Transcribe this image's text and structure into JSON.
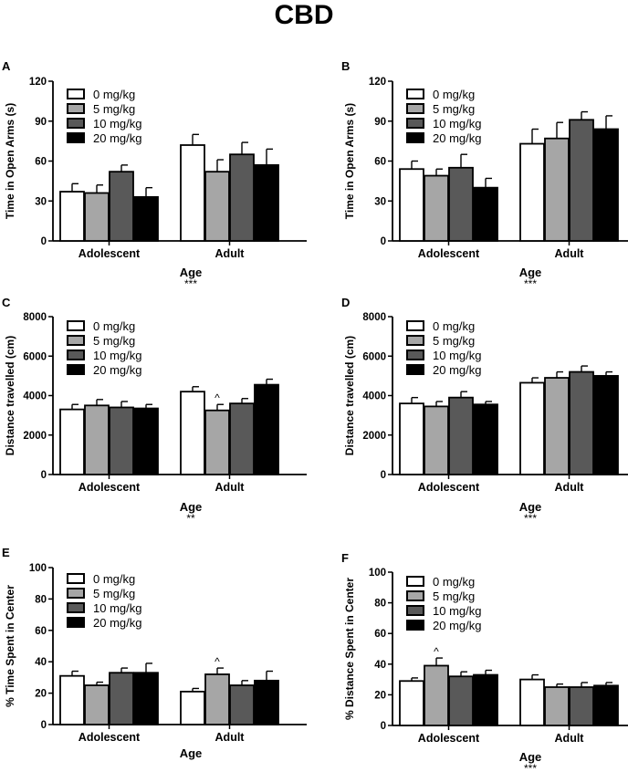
{
  "figure_title": "CBD",
  "colors": {
    "c0": "#ffffff",
    "c5": "#a6a6a6",
    "c10": "#595959",
    "c20": "#000000"
  },
  "chart_data": [
    {
      "type": "bar",
      "letter": "A",
      "ylabel": "Time in Open Arms (s)",
      "ylim": [
        0,
        120
      ],
      "yticks": [
        0,
        30,
        60,
        90,
        120
      ],
      "categories": [
        "Adolescent",
        "Adult"
      ],
      "series": [
        {
          "name": "0 mg/kg",
          "values": [
            37,
            72
          ],
          "errors": [
            6,
            8
          ]
        },
        {
          "name": "5 mg/kg",
          "values": [
            36,
            52
          ],
          "errors": [
            6,
            9
          ]
        },
        {
          "name": "10 mg/kg",
          "values": [
            52,
            65
          ],
          "errors": [
            5,
            9
          ]
        },
        {
          "name": "20 mg/kg",
          "values": [
            33,
            57
          ],
          "errors": [
            7,
            12
          ]
        }
      ],
      "xlabel": "Age",
      "significance": "***",
      "annotations": []
    },
    {
      "type": "bar",
      "letter": "B",
      "ylabel": "Time in Open Arms (s)",
      "ylim": [
        0,
        120
      ],
      "yticks": [
        0,
        30,
        60,
        90,
        120
      ],
      "categories": [
        "Adolescent",
        "Adult"
      ],
      "series": [
        {
          "name": "0 mg/kg",
          "values": [
            54,
            73
          ],
          "errors": [
            6,
            11
          ]
        },
        {
          "name": "5 mg/kg",
          "values": [
            49,
            77
          ],
          "errors": [
            5,
            12
          ]
        },
        {
          "name": "10 mg/kg",
          "values": [
            55,
            91
          ],
          "errors": [
            10,
            6
          ]
        },
        {
          "name": "20 mg/kg",
          "values": [
            40,
            84
          ],
          "errors": [
            7,
            10
          ]
        }
      ],
      "xlabel": "Age",
      "significance": "***",
      "annotations": []
    },
    {
      "type": "bar",
      "letter": "C",
      "ylabel": "Distance travelled (cm)",
      "ylim": [
        0,
        8000
      ],
      "yticks": [
        0,
        2000,
        4000,
        6000,
        8000
      ],
      "categories": [
        "Adolescent",
        "Adult"
      ],
      "series": [
        {
          "name": "0 mg/kg",
          "values": [
            3300,
            4200
          ],
          "errors": [
            250,
            250
          ]
        },
        {
          "name": "5 mg/kg",
          "values": [
            3500,
            3250
          ],
          "errors": [
            300,
            300
          ]
        },
        {
          "name": "10 mg/kg",
          "values": [
            3400,
            3600
          ],
          "errors": [
            300,
            250
          ]
        },
        {
          "name": "20 mg/kg",
          "values": [
            3350,
            4550
          ],
          "errors": [
            200,
            280
          ]
        }
      ],
      "xlabel": "Age",
      "significance": "**",
      "annotations": [
        {
          "text": "^",
          "category": 1,
          "series": 1
        }
      ]
    },
    {
      "type": "bar",
      "letter": "D",
      "ylabel": "Distance travelled (cm)",
      "ylim": [
        0,
        8000
      ],
      "yticks": [
        0,
        2000,
        4000,
        6000,
        8000
      ],
      "categories": [
        "Adolescent",
        "Adult"
      ],
      "series": [
        {
          "name": "0 mg/kg",
          "values": [
            3600,
            4650
          ],
          "errors": [
            300,
            250
          ]
        },
        {
          "name": "5 mg/kg",
          "values": [
            3450,
            4900
          ],
          "errors": [
            250,
            300
          ]
        },
        {
          "name": "10 mg/kg",
          "values": [
            3900,
            5200
          ],
          "errors": [
            300,
            300
          ]
        },
        {
          "name": "20 mg/kg",
          "values": [
            3550,
            5000
          ],
          "errors": [
            150,
            200
          ]
        }
      ],
      "xlabel": "Age",
      "significance": "***",
      "annotations": []
    },
    {
      "type": "bar",
      "letter": "E",
      "ylabel": "% Time Spent in Center",
      "ylim": [
        0,
        100
      ],
      "yticks": [
        0,
        20,
        40,
        60,
        80,
        100
      ],
      "categories": [
        "Adolescent",
        "Adult"
      ],
      "series": [
        {
          "name": "0 mg/kg",
          "values": [
            31,
            21
          ],
          "errors": [
            3,
            2
          ]
        },
        {
          "name": "5 mg/kg",
          "values": [
            25,
            32
          ],
          "errors": [
            2,
            4
          ]
        },
        {
          "name": "10 mg/kg",
          "values": [
            33,
            25
          ],
          "errors": [
            3,
            3
          ]
        },
        {
          "name": "20 mg/kg",
          "values": [
            33,
            28
          ],
          "errors": [
            6,
            6
          ]
        }
      ],
      "xlabel": "Age",
      "significance": "",
      "annotations": [
        {
          "text": "^",
          "category": 1,
          "series": 1
        }
      ]
    },
    {
      "type": "bar",
      "letter": "F",
      "ylabel": "% Distance Spent in Center",
      "ylim": [
        0,
        100
      ],
      "yticks": [
        0,
        20,
        40,
        60,
        80,
        100
      ],
      "categories": [
        "Adolescent",
        "Adult"
      ],
      "series": [
        {
          "name": "0 mg/kg",
          "values": [
            29,
            30
          ],
          "errors": [
            2,
            3
          ]
        },
        {
          "name": "5 mg/kg",
          "values": [
            39,
            25
          ],
          "errors": [
            5,
            2
          ]
        },
        {
          "name": "10 mg/kg",
          "values": [
            32,
            25
          ],
          "errors": [
            3,
            3
          ]
        },
        {
          "name": "20 mg/kg",
          "values": [
            33,
            26
          ],
          "errors": [
            3,
            2
          ]
        }
      ],
      "xlabel": "Age",
      "significance": "***",
      "annotations": [
        {
          "text": "^",
          "category": 0,
          "series": 1
        }
      ]
    }
  ]
}
